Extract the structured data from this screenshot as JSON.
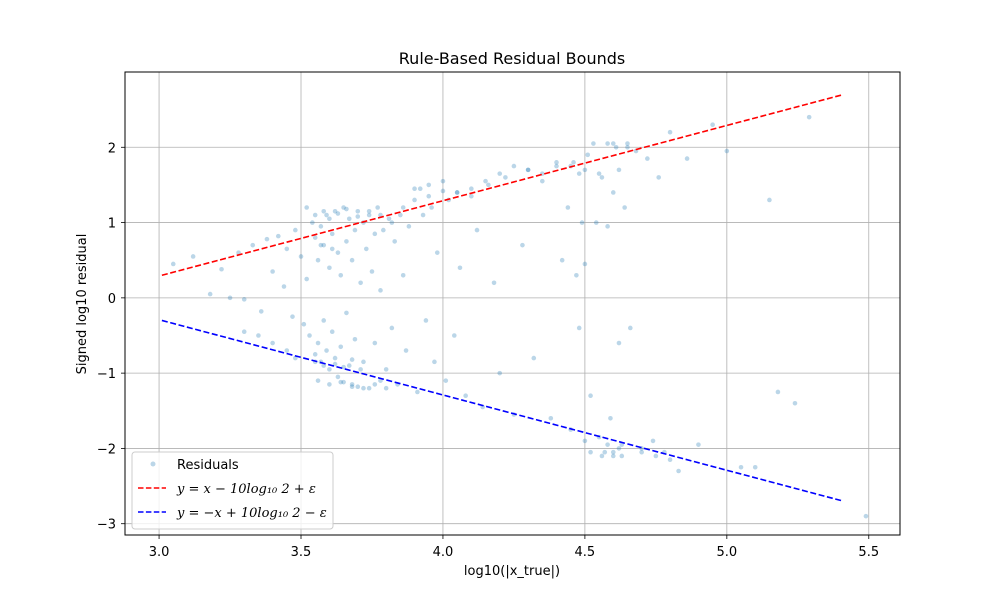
{
  "chart_data": {
    "type": "scatter",
    "title": "Rule-Based Residual Bounds",
    "xlabel": "log10(|x_true|)",
    "ylabel": "Signed log10 residual",
    "xlim": [
      2.88,
      5.61
    ],
    "ylim": [
      -3.15,
      3.0
    ],
    "xticks": [
      3.0,
      3.5,
      4.0,
      4.5,
      5.0,
      5.5
    ],
    "yticks": [
      -3,
      -2,
      -1,
      0,
      1,
      2
    ],
    "xtick_labels": [
      "3.0",
      "3.5",
      "4.0",
      "4.5",
      "5.0",
      "5.5"
    ],
    "ytick_labels": [
      "−3",
      "−2",
      "−1",
      "0",
      "1",
      "2"
    ],
    "grid": true,
    "legend_position": "lower-left",
    "series": [
      {
        "name": "Residuals",
        "kind": "scatter",
        "color": "#1f77b4",
        "x": [
          3.05,
          3.12,
          3.18,
          3.22,
          3.25,
          3.28,
          3.3,
          3.33,
          3.36,
          3.38,
          3.4,
          3.42,
          3.44,
          3.45,
          3.47,
          3.48,
          3.5,
          3.51,
          3.52,
          3.53,
          3.54,
          3.55,
          3.55,
          3.56,
          3.56,
          3.57,
          3.57,
          3.58,
          3.58,
          3.59,
          3.59,
          3.6,
          3.6,
          3.61,
          3.61,
          3.62,
          3.62,
          3.63,
          3.63,
          3.64,
          3.64,
          3.65,
          3.65,
          3.66,
          3.66,
          3.67,
          3.67,
          3.68,
          3.68,
          3.69,
          3.69,
          3.7,
          3.7,
          3.71,
          3.72,
          3.72,
          3.73,
          3.74,
          3.74,
          3.75,
          3.76,
          3.76,
          3.77,
          3.78,
          3.78,
          3.79,
          3.8,
          3.81,
          3.82,
          3.83,
          3.84,
          3.85,
          3.86,
          3.87,
          3.88,
          3.9,
          3.91,
          3.92,
          3.93,
          3.94,
          3.95,
          3.96,
          3.97,
          3.98,
          4.0,
          4.01,
          4.02,
          4.04,
          4.05,
          4.06,
          4.08,
          4.1,
          4.12,
          4.14,
          4.16,
          4.18,
          4.2,
          4.22,
          4.25,
          4.28,
          4.3,
          4.32,
          4.35,
          4.38,
          4.4,
          4.42,
          4.44,
          4.45,
          4.46,
          4.47,
          4.48,
          4.48,
          4.49,
          4.5,
          4.5,
          4.51,
          4.52,
          4.53,
          4.54,
          4.55,
          4.56,
          4.57,
          4.58,
          4.58,
          4.59,
          4.6,
          4.6,
          4.61,
          4.62,
          4.62,
          4.63,
          4.64,
          4.65,
          4.66,
          4.68,
          4.7,
          4.72,
          4.74,
          4.76,
          4.78,
          4.8,
          4.83,
          4.86,
          4.9,
          4.95,
          5.0,
          5.05,
          5.1,
          5.15,
          5.18,
          5.24,
          5.29,
          5.49,
          3.52,
          3.55,
          3.58,
          3.6,
          3.63,
          3.66,
          3.7,
          3.74,
          3.78,
          3.82,
          3.86,
          3.9,
          3.95,
          4.0,
          4.05,
          4.1,
          4.15,
          4.2,
          4.25,
          4.3,
          4.35,
          4.4,
          4.45,
          4.5,
          4.55,
          4.6,
          4.65,
          3.56,
          3.6,
          3.64,
          3.68,
          3.72,
          3.76,
          3.8,
          3.55,
          3.58,
          3.62,
          3.65,
          3.68,
          3.71,
          3.57,
          3.61,
          4.52,
          4.56,
          4.6,
          4.63,
          4.58,
          4.62,
          3.4,
          3.35,
          3.3,
          3.45,
          3.48,
          4.7,
          4.75,
          4.8
        ],
        "y": [
          0.45,
          0.55,
          0.05,
          0.38,
          0.0,
          0.6,
          -0.02,
          0.7,
          -0.18,
          0.78,
          0.35,
          0.82,
          0.15,
          0.65,
          -0.25,
          0.9,
          0.55,
          -0.35,
          0.25,
          -0.5,
          1.0,
          0.8,
          -0.75,
          0.5,
          -0.6,
          0.95,
          -0.85,
          0.7,
          -0.3,
          1.1,
          -0.7,
          0.4,
          -0.95,
          0.85,
          -0.45,
          1.15,
          -0.8,
          0.6,
          -1.05,
          0.3,
          -0.65,
          1.2,
          -1.12,
          0.75,
          -0.2,
          1.05,
          -0.9,
          0.5,
          -1.15,
          0.9,
          -0.55,
          1.15,
          -1.18,
          0.2,
          1.0,
          -0.85,
          0.65,
          1.1,
          -1.2,
          0.35,
          0.85,
          -0.6,
          1.2,
          -1.1,
          0.1,
          0.9,
          -0.95,
          1.05,
          -0.4,
          0.75,
          -1.15,
          1.1,
          0.3,
          -0.7,
          0.95,
          1.3,
          -1.25,
          1.45,
          1.1,
          -0.3,
          1.5,
          1.2,
          -0.85,
          0.6,
          1.55,
          -1.1,
          1.3,
          -0.5,
          1.4,
          0.4,
          -1.3,
          1.35,
          0.9,
          -1.45,
          1.5,
          0.2,
          -1.0,
          1.6,
          -1.55,
          0.7,
          1.7,
          -0.8,
          1.55,
          -1.6,
          1.75,
          0.5,
          1.2,
          -1.75,
          1.8,
          0.3,
          -0.4,
          1.65,
          1.0,
          -1.9,
          0.45,
          1.9,
          -1.3,
          2.05,
          1.0,
          -1.85,
          1.6,
          -2.05,
          2.05,
          0.95,
          -1.6,
          1.4,
          -2.1,
          2.0,
          -0.6,
          1.7,
          -1.95,
          1.2,
          2.0,
          -0.4,
          1.95,
          -2.0,
          1.85,
          -1.9,
          1.6,
          -2.05,
          2.2,
          -2.3,
          1.85,
          -1.95,
          2.3,
          1.95,
          -2.25,
          -2.25,
          1.3,
          -1.25,
          -1.4,
          2.4,
          -2.9,
          1.2,
          1.1,
          1.15,
          1.05,
          1.12,
          1.18,
          1.08,
          1.15,
          1.1,
          1.0,
          1.2,
          1.45,
          1.35,
          1.42,
          1.4,
          1.45,
          1.55,
          1.65,
          1.75,
          1.7,
          1.65,
          1.8,
          1.75,
          1.7,
          1.65,
          2.05,
          2.05,
          -1.1,
          -1.15,
          -1.12,
          -1.18,
          -1.2,
          -1.15,
          -1.2,
          -0.85,
          -0.9,
          -0.88,
          -0.92,
          -0.82,
          -0.95,
          0.7,
          0.65,
          -2.05,
          -2.1,
          -2.05,
          -2.1,
          -1.95,
          -2.0,
          -0.6,
          -0.5,
          -0.45,
          -0.7,
          -0.8,
          -2.05,
          -2.1,
          -2.15
        ]
      },
      {
        "name": "y = x − 10log₁₀2 + ε",
        "kind": "line",
        "color": "#ff0000",
        "dash": "dashed",
        "x": [
          3.01,
          5.41
        ],
        "y": [
          0.3,
          2.7
        ]
      },
      {
        "name": "y = −x + 10log₁₀2 − ε",
        "kind": "line",
        "color": "#0000ff",
        "dash": "dashed",
        "x": [
          3.01,
          5.41
        ],
        "y": [
          -0.3,
          -2.7
        ]
      }
    ]
  },
  "legend": {
    "items": [
      {
        "label": "Residuals",
        "color": "#1f77b4",
        "kind": "marker"
      },
      {
        "label": "y = x − 10log₁₀ 2 + ε",
        "color": "#ff0000",
        "kind": "dashed"
      },
      {
        "label": "y = −x + 10log₁₀ 2 − ε",
        "color": "#0000ff",
        "kind": "dashed"
      }
    ]
  }
}
